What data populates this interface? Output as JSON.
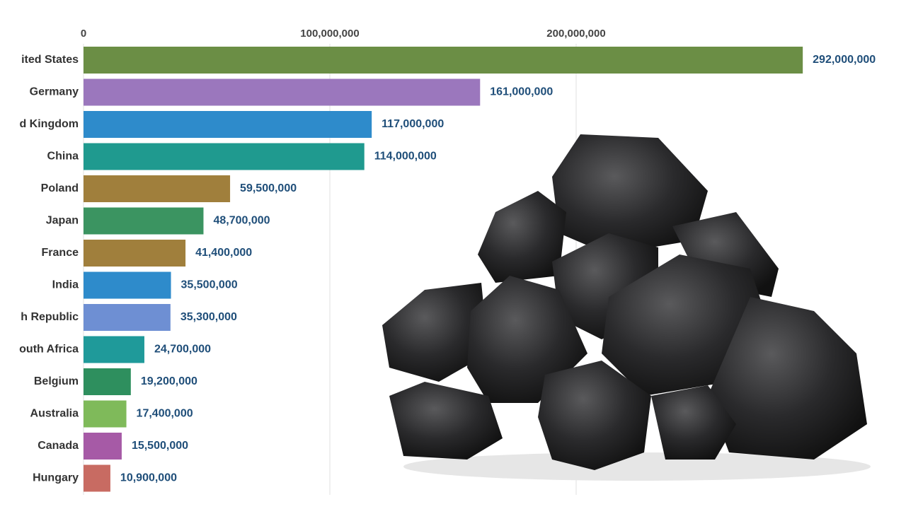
{
  "chart_data": {
    "type": "hbar",
    "categories": [
      "ited States",
      "Germany",
      "d Kingdom",
      "China",
      "Poland",
      "Japan",
      "France",
      "India",
      "h Republic",
      "outh Africa",
      "Belgium",
      "Australia",
      "Canada",
      "Hungary"
    ],
    "values": [
      292000000,
      161000000,
      117000000,
      114000000,
      59500000,
      48700000,
      41400000,
      35500000,
      35300000,
      24700000,
      19200000,
      17400000,
      15500000,
      10900000
    ],
    "value_labels": [
      "292,000,000",
      "161,000,000",
      "117,000,000",
      "114,000,000",
      "59,500,000",
      "48,700,000",
      "41,400,000",
      "35,500,000",
      "35,300,000",
      "24,700,000",
      "19,200,000",
      "17,400,000",
      "15,500,000",
      "10,900,000"
    ],
    "colors": [
      "#6b8e45",
      "#9b77bd",
      "#2e8bcb",
      "#1f9a8f",
      "#a07f3c",
      "#3b9461",
      "#a07f3c",
      "#2e8bcb",
      "#6e8fd3",
      "#1f9a9a",
      "#2e8f5e",
      "#7fba5a",
      "#a65aa6",
      "#c86b62"
    ],
    "xlim": [
      0,
      300000000
    ],
    "xticks": [
      0,
      {
        "value": 100000000,
        "label": "100,000,000"
      },
      {
        "value": 200000000,
        "label": "200,000,000"
      }
    ],
    "grid": true
  }
}
